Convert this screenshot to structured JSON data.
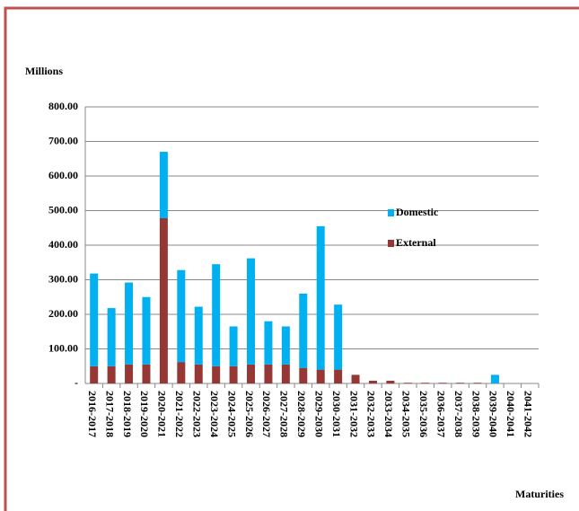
{
  "chart_data": {
    "type": "stacked-bar",
    "y_label": "Millions",
    "x_label": "Maturities",
    "categories": [
      "2016-2017",
      "2017-2018",
      "2018-2019",
      "2019-2020",
      "2020-2021",
      "2021-2022",
      "2022-2023",
      "2023-2024",
      "2024-2025",
      "2025-2026",
      "2026-2027",
      "2027-2028",
      "2028-2029",
      "2029-2030",
      "2030-2031",
      "2031-2032",
      "2032-2033",
      "2033-2034",
      "2034-2035",
      "2035-2036",
      "2036-2037",
      "2037-2038",
      "2038-2039",
      "2039-2040",
      "2040-2041",
      "2041-2042"
    ],
    "series": [
      {
        "name": "Domestic",
        "color": "#00b0f0",
        "values": [
          268,
          168,
          237,
          195,
          192,
          266,
          167,
          295,
          115,
          307,
          125,
          110,
          215,
          415,
          188,
          0,
          0,
          0,
          0,
          0,
          0,
          0,
          0,
          25,
          0,
          0
        ]
      },
      {
        "name": "External",
        "color": "#953735",
        "values": [
          50,
          50,
          55,
          55,
          478,
          62,
          55,
          50,
          50,
          55,
          55,
          55,
          45,
          40,
          40,
          25,
          8,
          8,
          2,
          2,
          2,
          2,
          2,
          0,
          0,
          0
        ]
      }
    ],
    "ylim": [
      0,
      800
    ],
    "yticks": [
      {
        "value": 0,
        "label": "-"
      },
      {
        "value": 100,
        "label": "100.00"
      },
      {
        "value": 200,
        "label": "200.00"
      },
      {
        "value": 300,
        "label": "300.00"
      },
      {
        "value": 400,
        "label": "400.00"
      },
      {
        "value": 500,
        "label": "500.00"
      },
      {
        "value": 600,
        "label": "600.00"
      },
      {
        "value": 700,
        "label": "700.00"
      },
      {
        "value": 800,
        "label": "800.00"
      }
    ],
    "grid": true,
    "legend": "center-right"
  }
}
